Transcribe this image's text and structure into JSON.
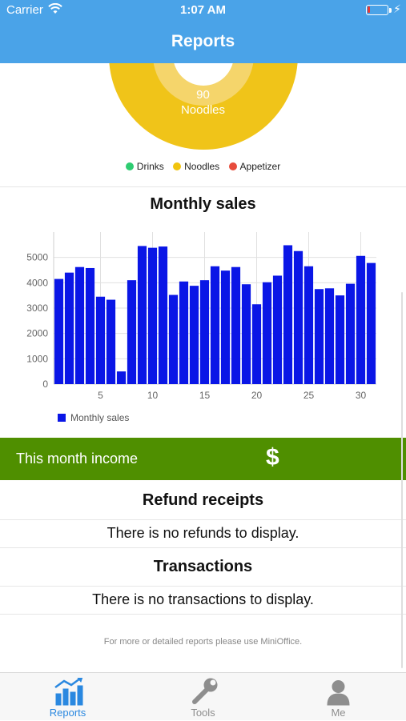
{
  "status_bar": {
    "carrier": "Carrier",
    "time": "1:07 AM",
    "battery_level": 0.12
  },
  "nav": {
    "title": "Reports"
  },
  "pie": {
    "visible_value": "90",
    "visible_label": "Noodles",
    "legend": [
      {
        "label": "Drinks",
        "color": "#2ecc71"
      },
      {
        "label": "Noodles",
        "color": "#f1c40f"
      },
      {
        "label": "Appetizer",
        "color": "#e74c3c"
      }
    ]
  },
  "chart_data": {
    "type": "bar",
    "title": "Monthly sales",
    "x": [
      1,
      2,
      3,
      4,
      5,
      6,
      7,
      8,
      9,
      10,
      11,
      12,
      13,
      14,
      15,
      16,
      17,
      18,
      19,
      20,
      21,
      22,
      23,
      24,
      25,
      26,
      27,
      28,
      29,
      30,
      31
    ],
    "series": [
      {
        "name": "Monthly sales",
        "values": [
          4150,
          4400,
          4620,
          4580,
          3450,
          3330,
          500,
          4100,
          5450,
          5380,
          5430,
          3520,
          4050,
          3880,
          4100,
          4650,
          4480,
          4620,
          3940,
          3150,
          4020,
          4280,
          5480,
          5250,
          4650,
          3750,
          3780,
          3500,
          3960,
          5060,
          4780
        ],
        "color": "#0a16e6"
      }
    ],
    "xticks": [
      5,
      10,
      15,
      20,
      25,
      30
    ],
    "yticks": [
      0,
      1000,
      2000,
      3000,
      4000,
      5000
    ],
    "ylim": [
      0,
      6000
    ],
    "xlim": [
      0.5,
      31.5
    ],
    "grid": true,
    "legend_position": "bottom-left"
  },
  "income": {
    "label": "This month income",
    "icon": "$"
  },
  "refunds": {
    "title": "Refund receipts",
    "message": "There is no refunds to display."
  },
  "transactions": {
    "title": "Transactions",
    "message": "There is no transactions to display."
  },
  "footer": {
    "note": "For more or detailed reports please use MiniOffice."
  },
  "tabs": [
    {
      "label": "Reports",
      "icon": "chart-icon",
      "active": true
    },
    {
      "label": "Tools",
      "icon": "wrench-icon",
      "active": false
    },
    {
      "label": "Me",
      "icon": "person-icon",
      "active": false
    }
  ],
  "colors": {
    "primary": "#4aa3e8",
    "income_bg": "#4f8f00",
    "bar": "#0a16e6",
    "tab_active": "#2a88e0",
    "tab_inactive": "#8e8e8e"
  }
}
